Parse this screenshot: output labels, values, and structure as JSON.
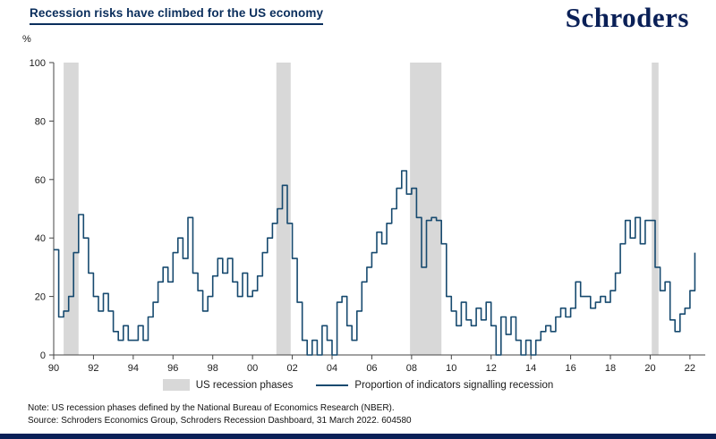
{
  "header": {
    "logo_text": "Schroders"
  },
  "chart_data": {
    "type": "line",
    "title": "Recession risks have climbed for the US economy",
    "ylabel": "%",
    "ylim": [
      0,
      100
    ],
    "yticks": [
      0,
      20,
      40,
      60,
      80,
      100
    ],
    "xlim": [
      1990,
      2022.5
    ],
    "xticks": [
      1990,
      1992,
      1994,
      1996,
      1998,
      2000,
      2002,
      2004,
      2006,
      2008,
      2010,
      2012,
      2014,
      2016,
      2018,
      2020,
      2022
    ],
    "xtick_labels": [
      "90",
      "92",
      "94",
      "96",
      "98",
      "00",
      "02",
      "04",
      "06",
      "08",
      "10",
      "12",
      "14",
      "16",
      "18",
      "20",
      "22"
    ],
    "grid": false,
    "legend_position": "bottom",
    "colors": {
      "line": "#174a6f",
      "band": "#d8d8d8",
      "axis": "#444444",
      "accent": "#0a2e5c",
      "logo": "#0a2057"
    },
    "recession_bands": [
      [
        1990.5,
        1991.25
      ],
      [
        2001.2,
        2001.92
      ],
      [
        2007.92,
        2009.5
      ],
      [
        2020.08,
        2020.42
      ]
    ],
    "series": [
      {
        "name": "Proportion of indicators signalling recession",
        "x_start": 1990.0,
        "x_step": 0.25,
        "values": [
          36,
          13,
          15,
          20,
          35,
          48,
          40,
          28,
          20,
          15,
          21,
          15,
          8,
          5,
          10,
          5,
          5,
          10,
          5,
          13,
          18,
          25,
          30,
          25,
          35,
          40,
          33,
          47,
          28,
          22,
          15,
          20,
          27,
          33,
          28,
          33,
          25,
          20,
          28,
          20,
          22,
          27,
          35,
          40,
          45,
          50,
          58,
          45,
          33,
          18,
          5,
          0,
          5,
          0,
          10,
          5,
          0,
          18,
          20,
          10,
          5,
          15,
          25,
          30,
          35,
          42,
          38,
          45,
          50,
          57,
          63,
          55,
          57,
          47,
          30,
          46,
          47,
          46,
          38,
          20,
          15,
          10,
          18,
          12,
          10,
          16,
          12,
          18,
          10,
          0,
          13,
          7,
          13,
          5,
          0,
          5,
          0,
          5,
          8,
          10,
          8,
          13,
          16,
          13,
          16,
          25,
          20,
          20,
          16,
          18,
          20,
          18,
          22,
          28,
          38,
          46,
          40,
          47,
          38,
          46,
          46,
          30,
          22,
          25,
          12,
          8,
          14,
          16,
          22,
          35
        ]
      }
    ],
    "legend": [
      "US recession phases",
      "Proportion of indicators signalling recession"
    ]
  },
  "notes": {
    "line1": "Note: US recession phases defined by the National Bureau of Economics Research (NBER).",
    "line2": "Source: Schroders Economics Group, Schroders Recession Dashboard, 31 March 2022. 604580"
  }
}
